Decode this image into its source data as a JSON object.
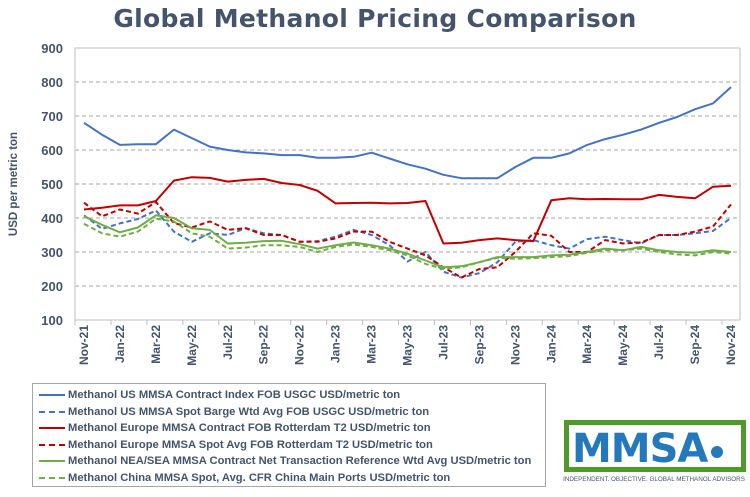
{
  "chart_data": {
    "type": "line",
    "title": "Global Methanol Pricing Comparison",
    "ylabel": "USD per metric ton",
    "xlabel": "",
    "ylim": [
      100,
      900
    ],
    "yticks": [
      100,
      200,
      300,
      400,
      500,
      600,
      700,
      800,
      900
    ],
    "grid": true,
    "legend_position": "bottom-left",
    "categories": [
      "Nov-21",
      "Dec-21",
      "Jan-22",
      "Feb-22",
      "Mar-22",
      "Apr-22",
      "May-22",
      "Jun-22",
      "Jul-22",
      "Aug-22",
      "Sep-22",
      "Oct-22",
      "Nov-22",
      "Dec-22",
      "Jan-23",
      "Feb-23",
      "Mar-23",
      "Apr-23",
      "May-23",
      "Jun-23",
      "Jul-23",
      "Aug-23",
      "Sep-23",
      "Oct-23",
      "Nov-23",
      "Dec-23",
      "Jan-24",
      "Feb-24",
      "Mar-24",
      "Apr-24",
      "May-24",
      "Jun-24",
      "Jul-24",
      "Aug-24",
      "Sep-24",
      "Oct-24",
      "Nov-24"
    ],
    "xtick_labels": [
      "Nov-21",
      "Jan-22",
      "Mar-22",
      "May-22",
      "Jul-22",
      "Sep-22",
      "Nov-22",
      "Jan-23",
      "Mar-23",
      "May-23",
      "Jul-23",
      "Sep-23",
      "Nov-23",
      "Jan-24",
      "Mar-24",
      "May-24",
      "Jul-24",
      "Sep-24",
      "Nov-24"
    ],
    "series": [
      {
        "name": "Methanol US MMSA Contract Index FOB USGC USD/metric ton",
        "color": "#4472C4",
        "dash": false,
        "values": [
          680,
          645,
          615,
          617,
          617,
          660,
          635,
          610,
          600,
          593,
          590,
          585,
          585,
          577,
          577,
          580,
          592,
          575,
          558,
          545,
          527,
          517,
          517,
          517,
          550,
          577,
          577,
          590,
          615,
          632,
          645,
          660,
          680,
          697,
          720,
          737,
          785
        ]
      },
      {
        "name": "Methanol US MMSA Spot Barge Wtd Avg FOB USGC USD/metric ton",
        "color": "#4472C4",
        "dash": true,
        "values": [
          408,
          368,
          384,
          397,
          422,
          360,
          330,
          355,
          350,
          370,
          355,
          350,
          330,
          332,
          345,
          365,
          350,
          320,
          272,
          300,
          242,
          225,
          238,
          270,
          330,
          335,
          320,
          310,
          338,
          345,
          335,
          325,
          350,
          350,
          355,
          362,
          400
        ]
      },
      {
        "name": "Methanol Europe MMSA Contract FOB Rotterdam T2 USD/metric ton",
        "color": "#C00000",
        "dash": false,
        "values": [
          425,
          430,
          437,
          437,
          450,
          510,
          520,
          518,
          507,
          512,
          515,
          503,
          497,
          480,
          443,
          444,
          445,
          443,
          444,
          450,
          325,
          327,
          335,
          340,
          335,
          332,
          452,
          458,
          455,
          456,
          455,
          455,
          468,
          462,
          458,
          492,
          495
        ]
      },
      {
        "name": "Methanol Europe MMSA Spot Avg FOB Rotterdam T2 USD/metric ton",
        "color": "#C00000",
        "dash": true,
        "values": [
          445,
          405,
          425,
          413,
          447,
          385,
          372,
          390,
          365,
          370,
          350,
          350,
          330,
          330,
          340,
          360,
          360,
          330,
          310,
          290,
          255,
          225,
          250,
          255,
          300,
          355,
          348,
          300,
          300,
          335,
          325,
          328,
          350,
          350,
          360,
          375,
          440
        ]
      },
      {
        "name": "Methanol NEA/SEA MMSA Contract Net Transaction Reference Wtd Avg USD/metric ton",
        "color": "#70AD47",
        "dash": false,
        "values": [
          405,
          380,
          358,
          372,
          408,
          400,
          370,
          365,
          325,
          327,
          332,
          333,
          323,
          310,
          320,
          328,
          320,
          310,
          295,
          275,
          255,
          258,
          270,
          285,
          285,
          285,
          290,
          292,
          300,
          310,
          305,
          315,
          305,
          300,
          298,
          305,
          300
        ]
      },
      {
        "name": "Methanol China MMSA Spot, Avg. CFR China Main Ports USD/metric ton",
        "color": "#70AD47",
        "dash": true,
        "values": [
          383,
          355,
          345,
          360,
          398,
          390,
          355,
          345,
          310,
          313,
          320,
          320,
          315,
          300,
          315,
          322,
          315,
          305,
          290,
          265,
          250,
          255,
          270,
          283,
          280,
          282,
          285,
          288,
          298,
          305,
          305,
          310,
          300,
          293,
          290,
          300,
          295
        ]
      }
    ]
  },
  "logo": {
    "text": "MMSA",
    "tagline": "INDEPENDENT. OBJECTIVE. GLOBAL METHANOL ADVISORS"
  }
}
